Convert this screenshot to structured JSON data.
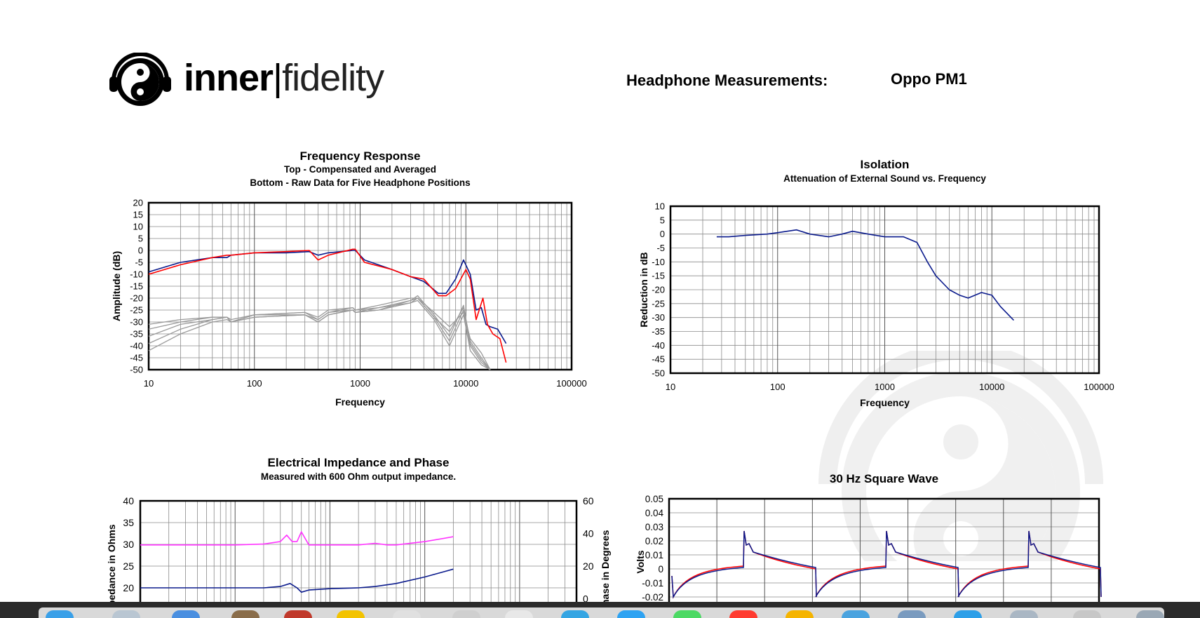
{
  "brand": {
    "bold": "inner",
    "separator": "|",
    "rest": "fidelity"
  },
  "header": {
    "label": "Headphone Measurements:",
    "model": "Oppo PM1"
  },
  "colors": {
    "blue": "#0a1a8c",
    "red": "#ff0000",
    "gray": "#9a9a9a",
    "magenta": "#ff33ff",
    "dock": "#2b2b2b"
  },
  "chart_data": [
    {
      "type": "line",
      "title": "Frequency Response",
      "subtitle1": "Top -  Compensated and Averaged",
      "subtitle2": "Bottom - Raw Data for Five Headphone Positions",
      "xlabel": "Frequency",
      "ylabel": "Amplitude (dB)",
      "xscale": "log",
      "xlim": [
        10,
        100000
      ],
      "ylim": [
        -50,
        20
      ],
      "xticks": [
        "10",
        "100",
        "1000",
        "10000",
        "100000"
      ],
      "yticks": [
        "20",
        "15",
        "10",
        "5",
        "0",
        "-5",
        "-10",
        "-15",
        "-20",
        "-25",
        "-30",
        "-35",
        "-40",
        "-45",
        "-50"
      ],
      "grid": true,
      "series": [
        {
          "color": "blue",
          "x": [
            10,
            20,
            40,
            55,
            60,
            100,
            200,
            330,
            400,
            500,
            850,
            900,
            1100,
            2000,
            3000,
            4000,
            5500,
            6500,
            8000,
            9500,
            11000,
            12500,
            14000,
            15500,
            17000,
            20000,
            24000
          ],
          "y": [
            -9,
            -5,
            -3,
            -3,
            -2,
            -1,
            -1,
            -0.5,
            -2,
            -1,
            0,
            0,
            -4,
            -8,
            -11,
            -13,
            -18,
            -18,
            -12,
            -4,
            -10,
            -25,
            -24,
            -31,
            -32,
            -33,
            -39
          ]
        },
        {
          "color": "red",
          "x": [
            10,
            20,
            40,
            55,
            60,
            100,
            200,
            330,
            400,
            500,
            850,
            900,
            1100,
            2000,
            3000,
            4000,
            5500,
            6500,
            8000,
            10000,
            11000,
            12500,
            14500,
            16000,
            18000,
            21000,
            24000
          ],
          "y": [
            -10,
            -6,
            -3,
            -2,
            -2,
            -1,
            -0.5,
            0,
            -4,
            -2,
            0.5,
            0.5,
            -5,
            -8,
            -11,
            -12,
            -19,
            -19,
            -16,
            -8,
            -12,
            -29,
            -20,
            -31,
            -35,
            -37,
            -47
          ]
        },
        {
          "color": "gray",
          "x": [
            10,
            20,
            40,
            55,
            60,
            100,
            300,
            400,
            500,
            850,
            900,
            1500,
            3000,
            3500,
            5000,
            7000,
            9500,
            11000,
            14000,
            17000
          ],
          "y": [
            -31,
            -29,
            -28,
            -28,
            -29,
            -27,
            -26,
            -28,
            -25,
            -24,
            -25,
            -23,
            -20,
            -20,
            -28,
            -34,
            -24,
            -38,
            -45,
            -50
          ]
        },
        {
          "color": "gray",
          "x": [
            10,
            20,
            40,
            55,
            60,
            100,
            300,
            400,
            500,
            850,
            900,
            1500,
            3000,
            3500,
            5000,
            7000,
            9500,
            11000,
            14000,
            17000
          ],
          "y": [
            -33,
            -30,
            -28,
            -28,
            -30,
            -27,
            -26,
            -29,
            -26,
            -24,
            -25,
            -24,
            -21,
            -20,
            -26,
            -32,
            -26,
            -37,
            -43,
            -50
          ]
        },
        {
          "color": "gray",
          "x": [
            10,
            20,
            40,
            55,
            60,
            100,
            300,
            400,
            500,
            850,
            900,
            1500,
            3000,
            3500,
            5000,
            7000,
            9500,
            11000,
            14000,
            17000
          ],
          "y": [
            -36,
            -31,
            -29,
            -28,
            -30,
            -27,
            -27,
            -29,
            -26,
            -25,
            -26,
            -25,
            -21,
            -19,
            -27,
            -36,
            -23,
            -39,
            -46,
            -50
          ]
        },
        {
          "color": "gray",
          "x": [
            10,
            20,
            40,
            55,
            60,
            100,
            300,
            400,
            500,
            850,
            900,
            1500,
            3000,
            3500,
            5000,
            7000,
            9500,
            11000,
            14000,
            17000
          ],
          "y": [
            -39,
            -33,
            -29,
            -28,
            -30,
            -28,
            -27,
            -30,
            -27,
            -25,
            -26,
            -24,
            -22,
            -20,
            -28,
            -38,
            -25,
            -40,
            -47,
            -50
          ]
        },
        {
          "color": "gray",
          "x": [
            10,
            20,
            40,
            55,
            60,
            100,
            300,
            400,
            500,
            850,
            900,
            1500,
            3000,
            3500,
            5000,
            7000,
            9500,
            11000,
            14000,
            17000
          ],
          "y": [
            -42,
            -35,
            -30,
            -29,
            -30,
            -28,
            -27,
            -30,
            -27,
            -25,
            -26,
            -25,
            -22,
            -21,
            -29,
            -40,
            -27,
            -42,
            -48,
            -50
          ]
        }
      ]
    },
    {
      "type": "line",
      "title": "Isolation",
      "subtitle1": "Attenuation of External Sound vs. Frequency",
      "xlabel": "Frequency",
      "ylabel": "Reduction in dB",
      "xscale": "log",
      "xlim": [
        10,
        100000
      ],
      "ylim": [
        -50,
        10
      ],
      "xticks": [
        "10",
        "100",
        "1000",
        "10000",
        "100000"
      ],
      "yticks": [
        "10",
        "5",
        "0",
        "-5",
        "-10",
        "-15",
        "-20",
        "-25",
        "-30",
        "-35",
        "-40",
        "-45",
        "-50"
      ],
      "grid": true,
      "series": [
        {
          "color": "blue",
          "x": [
            27,
            35,
            50,
            80,
            100,
            150,
            200,
            300,
            400,
            500,
            700,
            1000,
            1500,
            2000,
            2500,
            3000,
            4000,
            5000,
            6000,
            8000,
            10000,
            12000,
            16000
          ],
          "y": [
            -1,
            -1,
            -0.5,
            0,
            0.5,
            1.5,
            0,
            -1,
            0,
            1,
            0,
            -1,
            -1,
            -3,
            -10,
            -15,
            -20,
            -22,
            -23,
            -21,
            -22,
            -26,
            -31
          ]
        }
      ]
    },
    {
      "type": "line",
      "title": "Electrical Impedance and Phase",
      "subtitle1": "Measured with 600 Ohm output impedance.",
      "ylabel": "Impedance in Ohms",
      "y2label": "Phase in Degrees",
      "xscale": "log",
      "ylim": [
        10,
        40
      ],
      "y2lim": [
        -20,
        60
      ],
      "yticks": [
        "40",
        "35",
        "30",
        "25",
        "20"
      ],
      "y2ticks": [
        "60",
        "40",
        "20",
        "0"
      ],
      "grid": true,
      "series": [
        {
          "color": "magenta",
          "axis": "phase",
          "x": [
            10,
            50,
            100,
            200,
            300,
            350,
            400,
            450,
            500,
            600,
            1000,
            2000,
            3000,
            4000,
            5000,
            10000,
            20000
          ],
          "y": [
            33,
            33,
            33,
            33.5,
            35,
            39,
            35,
            35,
            41,
            33,
            33,
            33,
            34,
            33,
            33,
            35,
            38
          ]
        },
        {
          "color": "blue",
          "axis": "impedance",
          "x": [
            10,
            50,
            100,
            200,
            300,
            380,
            450,
            500,
            600,
            1000,
            2000,
            3000,
            5000,
            10000,
            20000
          ],
          "y": [
            20,
            20,
            20,
            20,
            20.3,
            21,
            20,
            19,
            19.5,
            19.8,
            20,
            20.3,
            21,
            22.5,
            24.3
          ]
        }
      ]
    },
    {
      "type": "line",
      "title": "30 Hz Square Wave",
      "ylabel": "Volts",
      "ylim": [
        -0.015,
        0.05
      ],
      "yticks": [
        "0.05",
        "0.04",
        "0.03",
        "0.02",
        "0.01",
        "0",
        "-0.01",
        "-0.02"
      ],
      "grid": true,
      "series": [
        {
          "color": "blue",
          "name": "",
          "x": [],
          "y": []
        },
        {
          "color": "red",
          "name": "",
          "x": [],
          "y": []
        }
      ]
    }
  ]
}
